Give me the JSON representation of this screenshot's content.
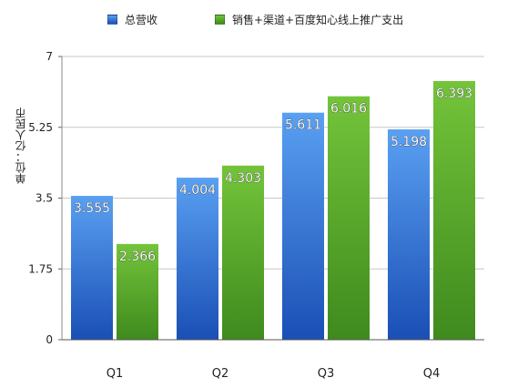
{
  "chart_data": {
    "type": "bar",
    "categories": [
      "Q1",
      "Q2",
      "Q3",
      "Q4"
    ],
    "series": [
      {
        "name": "总营收",
        "values": [
          3.555,
          4.004,
          5.611,
          5.198
        ],
        "color_top": "#5aa0f2",
        "color_bottom": "#1a4fb5"
      },
      {
        "name": "销售+渠道+百度知心线上推广支出",
        "values": [
          2.366,
          4.303,
          6.016,
          6.393
        ],
        "color_top": "#74c43a",
        "color_bottom": "#3f8a1e"
      }
    ],
    "data_labels": [
      [
        "3.555",
        "4.004",
        "5.611",
        "5.198"
      ],
      [
        "2.366",
        "4.303",
        "6.016",
        "6.393"
      ]
    ],
    "ylabel": "单位：亿人民币",
    "ylim": [
      0,
      7
    ],
    "yticks": [
      0,
      1.75,
      3.5,
      5.25,
      7
    ],
    "ytick_labels": [
      "0",
      "1.75",
      "3.5",
      "5.25",
      "7"
    ],
    "grid": true,
    "legend_position": "top"
  }
}
